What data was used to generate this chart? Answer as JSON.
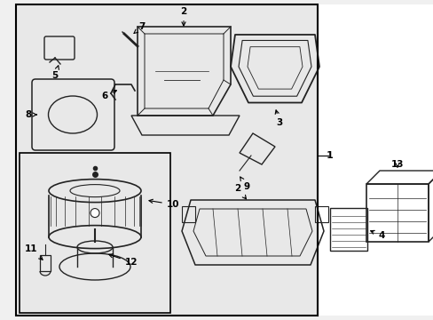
{
  "background_color": "#f0f0f0",
  "border_color": "#000000",
  "line_color": "#222222",
  "fig_width": 4.89,
  "fig_height": 3.6,
  "dpi": 100
}
